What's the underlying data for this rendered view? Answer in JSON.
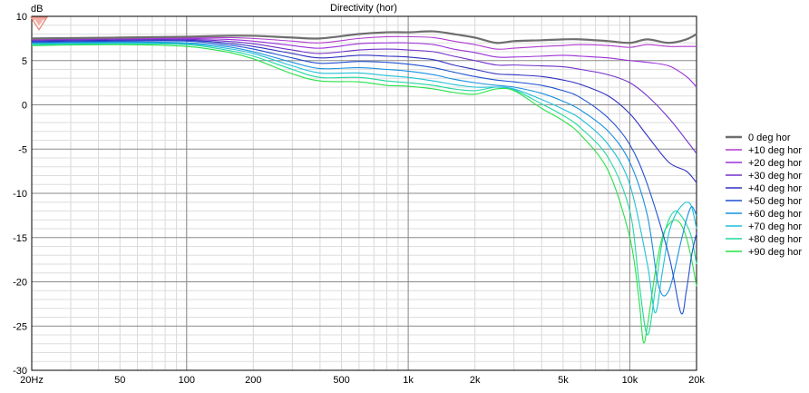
{
  "chart_data": {
    "type": "line",
    "title": "Directivity (hor)",
    "ylabel": "dB",
    "xlabel": "",
    "x_scale": "log",
    "xlim": [
      20,
      20000
    ],
    "ylim": [
      -30,
      10
    ],
    "grid": true,
    "legend_position": "right",
    "x_ticks": [
      {
        "value": 20,
        "label": "20Hz"
      },
      {
        "value": 50,
        "label": "50"
      },
      {
        "value": 100,
        "label": "100"
      },
      {
        "value": 200,
        "label": "200"
      },
      {
        "value": 500,
        "label": "500"
      },
      {
        "value": 1000,
        "label": "1k"
      },
      {
        "value": 2000,
        "label": "2k"
      },
      {
        "value": 5000,
        "label": "5k"
      },
      {
        "value": 10000,
        "label": "10k"
      },
      {
        "value": 20000,
        "label": "20k"
      }
    ],
    "y_ticks": [
      {
        "value": 10,
        "label": "10"
      },
      {
        "value": 5,
        "label": "5"
      },
      {
        "value": 0,
        "label": "0"
      },
      {
        "value": -5,
        "label": "-5"
      },
      {
        "value": -10,
        "label": "-10"
      },
      {
        "value": -15,
        "label": "-15"
      },
      {
        "value": -20,
        "label": "-20"
      },
      {
        "value": -25,
        "label": "-25"
      },
      {
        "value": -30,
        "label": "-30"
      }
    ],
    "series": [
      {
        "name": "0 deg hor",
        "color": "#6e6e6e",
        "x": [
          20,
          50,
          100,
          150,
          200,
          300,
          400,
          600,
          800,
          1000,
          1300,
          1600,
          2000,
          2500,
          3000,
          4000,
          5000,
          6000,
          8000,
          10000,
          12000,
          15000,
          18000,
          20000
        ],
        "y": [
          7.5,
          7.6,
          7.7,
          7.8,
          7.8,
          7.6,
          7.5,
          8.0,
          8.2,
          8.2,
          8.3,
          8.0,
          7.6,
          7.0,
          7.2,
          7.3,
          7.4,
          7.4,
          7.2,
          7.0,
          7.4,
          7.0,
          7.4,
          8.0
        ]
      },
      {
        "name": "+10 deg hor",
        "color": "#b03cd0",
        "x": [
          20,
          50,
          100,
          150,
          200,
          300,
          400,
          600,
          800,
          1000,
          1300,
          1600,
          2000,
          2500,
          3000,
          4000,
          5000,
          6000,
          8000,
          10000,
          12000,
          15000,
          18000,
          20000
        ],
        "y": [
          7.4,
          7.5,
          7.6,
          7.6,
          7.5,
          7.2,
          7.0,
          7.5,
          7.7,
          7.7,
          7.6,
          7.2,
          6.8,
          6.3,
          6.4,
          6.6,
          6.7,
          6.8,
          6.7,
          6.5,
          6.8,
          6.6,
          6.6,
          6.6
        ]
      },
      {
        "name": "+20 deg hor",
        "color": "#9a30d8",
        "x": [
          20,
          50,
          100,
          150,
          200,
          300,
          400,
          600,
          800,
          1000,
          1300,
          1600,
          2000,
          2500,
          3000,
          4000,
          5000,
          6000,
          8000,
          10000,
          12000,
          15000,
          18000,
          20000
        ],
        "y": [
          7.4,
          7.5,
          7.5,
          7.4,
          7.2,
          6.7,
          6.4,
          6.9,
          7.0,
          7.0,
          6.8,
          6.3,
          5.9,
          5.4,
          5.4,
          5.5,
          5.6,
          5.5,
          5.3,
          5.0,
          4.8,
          4.4,
          3.2,
          2.0
        ]
      },
      {
        "name": "+30 deg hor",
        "color": "#7030c8",
        "x": [
          20,
          50,
          100,
          150,
          200,
          300,
          400,
          600,
          800,
          1000,
          1300,
          1600,
          2000,
          2500,
          3000,
          4000,
          5000,
          6000,
          8000,
          10000,
          12000,
          15000,
          18000,
          20000
        ],
        "y": [
          7.3,
          7.4,
          7.4,
          7.2,
          6.9,
          6.2,
          5.8,
          6.2,
          6.3,
          6.2,
          6.0,
          5.5,
          5.0,
          4.5,
          4.5,
          4.4,
          4.3,
          4.0,
          3.4,
          2.5,
          1.0,
          -1.5,
          -4.0,
          -5.5
        ]
      },
      {
        "name": "+40 deg hor",
        "color": "#3030c0",
        "x": [
          20,
          50,
          100,
          150,
          200,
          300,
          400,
          600,
          800,
          1000,
          1300,
          1600,
          2000,
          2500,
          3000,
          4000,
          5000,
          6000,
          8000,
          10000,
          12000,
          15000,
          18000,
          20000
        ],
        "y": [
          7.2,
          7.3,
          7.3,
          7.0,
          6.6,
          5.8,
          5.3,
          5.6,
          5.5,
          5.4,
          5.1,
          4.5,
          4.0,
          3.5,
          3.4,
          3.2,
          2.8,
          2.3,
          1.0,
          -1.0,
          -3.5,
          -6.5,
          -7.5,
          -8.8
        ]
      },
      {
        "name": "+50 deg hor",
        "color": "#2050d0",
        "x": [
          20,
          50,
          100,
          150,
          200,
          300,
          400,
          600,
          800,
          1000,
          1300,
          1600,
          2000,
          2500,
          3000,
          4000,
          5000,
          6000,
          8000,
          10000,
          12000,
          15000,
          17000,
          18000,
          19000,
          20000
        ],
        "y": [
          7.1,
          7.2,
          7.2,
          6.8,
          6.3,
          5.3,
          4.7,
          4.9,
          4.8,
          4.6,
          4.2,
          3.7,
          3.2,
          2.8,
          2.6,
          2.2,
          1.6,
          0.8,
          -1.5,
          -4.5,
          -9.0,
          -17.0,
          -23.5,
          -21.0,
          -17.0,
          -14.5
        ]
      },
      {
        "name": "+60 deg hor",
        "color": "#1890e0",
        "x": [
          20,
          50,
          100,
          150,
          200,
          300,
          400,
          600,
          800,
          1000,
          1300,
          1600,
          2000,
          2500,
          3000,
          4000,
          5000,
          6000,
          8000,
          10000,
          12000,
          13500,
          15000,
          17000,
          18000,
          19000,
          20000
        ],
        "y": [
          7.0,
          7.1,
          7.0,
          6.6,
          6.0,
          4.8,
          4.1,
          4.2,
          4.0,
          3.8,
          3.4,
          2.9,
          2.5,
          2.2,
          2.0,
          1.3,
          0.4,
          -0.6,
          -3.0,
          -6.5,
          -12.5,
          -20.5,
          -21.0,
          -15.5,
          -13.0,
          -11.5,
          -12.5
        ]
      },
      {
        "name": "+70 deg hor",
        "color": "#20c0d8",
        "x": [
          20,
          50,
          100,
          150,
          200,
          300,
          400,
          600,
          800,
          1000,
          1300,
          1600,
          2000,
          2500,
          3000,
          4000,
          5000,
          6000,
          8000,
          10000,
          12000,
          13000,
          14000,
          15000,
          16000,
          17000,
          18000,
          19000,
          20000
        ],
        "y": [
          6.9,
          7.0,
          6.9,
          6.4,
          5.8,
          4.4,
          3.6,
          3.6,
          3.3,
          3.1,
          2.7,
          2.3,
          2.0,
          2.0,
          1.8,
          0.6,
          -0.5,
          -1.6,
          -4.5,
          -9.0,
          -18.0,
          -23.5,
          -19.0,
          -14.5,
          -12.5,
          -11.5,
          -11.0,
          -11.5,
          -14.0
        ]
      },
      {
        "name": "+80 deg hor",
        "color": "#20d8a0",
        "x": [
          20,
          50,
          100,
          150,
          200,
          300,
          400,
          600,
          800,
          1000,
          1300,
          1600,
          2000,
          2500,
          3000,
          4000,
          5000,
          6000,
          8000,
          10000,
          11000,
          12000,
          13000,
          14000,
          15000,
          16000,
          17000,
          18000,
          19000,
          20000
        ],
        "y": [
          6.8,
          6.9,
          6.8,
          6.2,
          5.5,
          4.0,
          3.1,
          3.1,
          2.7,
          2.5,
          2.2,
          1.8,
          1.6,
          2.0,
          1.7,
          0.1,
          -1.2,
          -2.6,
          -6.0,
          -12.0,
          -20.0,
          -26.0,
          -21.0,
          -15.5,
          -13.0,
          -12.0,
          -12.5,
          -13.5,
          -15.0,
          -18.0
        ]
      },
      {
        "name": "+90 deg hor",
        "color": "#28e048",
        "x": [
          20,
          50,
          100,
          150,
          200,
          300,
          400,
          600,
          800,
          1000,
          1300,
          1600,
          2000,
          2500,
          3000,
          4000,
          5000,
          6000,
          8000,
          10000,
          11000,
          11500,
          12000,
          13000,
          14000,
          15000,
          16000,
          17000,
          18000,
          19000,
          20000
        ],
        "y": [
          6.7,
          6.8,
          6.6,
          6.0,
          5.2,
          3.5,
          2.7,
          2.6,
          2.2,
          2.1,
          1.8,
          1.4,
          1.2,
          1.8,
          1.6,
          -0.4,
          -1.8,
          -3.4,
          -7.5,
          -15.0,
          -22.0,
          -26.8,
          -25.0,
          -19.0,
          -15.0,
          -13.5,
          -13.0,
          -13.5,
          -15.0,
          -17.5,
          -20.5
        ]
      }
    ]
  }
}
